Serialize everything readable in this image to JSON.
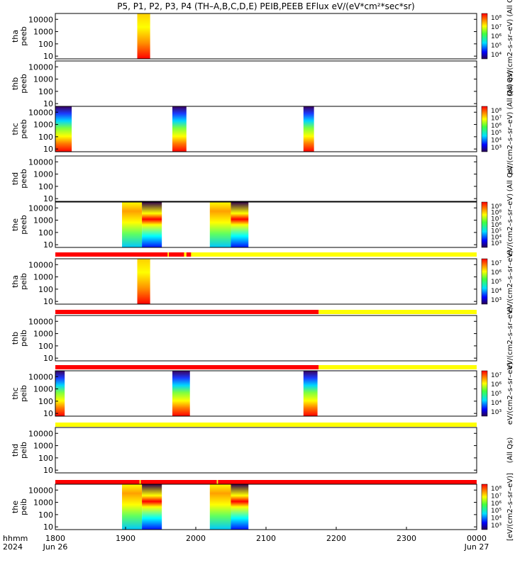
{
  "title": "P5, P1, P2, P3, P4 (TH–A,B,C,D,E) PEIB,PEEB EFlux eV/(eV*cm²*sec*sr)",
  "x_axis": {
    "corner_labels": [
      "hhmm",
      "2024"
    ],
    "tick_labels": [
      "1800",
      "1900",
      "2000",
      "2100",
      "2200",
      "2300",
      "0000"
    ],
    "date_labels": [
      "Jun 26",
      "Jun 27"
    ]
  },
  "colors": {
    "flag_red": "#ff0000",
    "flag_yellow": "#ffff00",
    "frame": "#000000"
  },
  "chart_data": [
    {
      "type": "heatmap",
      "probe": "tha",
      "label": [
        "tha",
        "peeb"
      ],
      "yscale": "log",
      "ylim": [
        6,
        30000
      ],
      "yticks": [
        "10",
        "100",
        "1000",
        "10000"
      ],
      "colorbar": {
        "labels": [
          "10⁴",
          "10⁵",
          "10⁶",
          "10⁷",
          "10⁸"
        ],
        "title": "eV/(cm2–s–sr–eV) (All Qs)"
      },
      "intervals": [
        [
          "1910",
          "1921"
        ]
      ]
    },
    {
      "type": "heatmap",
      "probe": "thb",
      "label": [
        "thb",
        "peeb"
      ],
      "yscale": "log",
      "ylim": [
        6,
        30000
      ],
      "yticks": [
        "10",
        "100",
        "1000",
        "10000"
      ],
      "colorbar": {
        "labels": [],
        "title": "(All Qs)"
      },
      "intervals": []
    },
    {
      "type": "heatmap",
      "probe": "thc",
      "label": [
        "thc",
        "peeb"
      ],
      "yscale": "log",
      "ylim": [
        6,
        30000
      ],
      "yticks": [
        "10",
        "100",
        "1000",
        "10000"
      ],
      "colorbar": {
        "labels": [
          "10³",
          "10⁴",
          "10⁵",
          "10⁶",
          "10⁷",
          "10⁸"
        ],
        "title": "eV/(cm2–s–sr–eV) (All Qs)"
      },
      "intervals": [
        [
          "1800",
          "1814"
        ],
        [
          "1940",
          "1952"
        ],
        [
          "2132",
          "2141"
        ]
      ]
    },
    {
      "type": "heatmap",
      "probe": "thd",
      "label": [
        "thd",
        "peeb"
      ],
      "yscale": "log",
      "ylim": [
        6,
        30000
      ],
      "yticks": [
        "10",
        "100",
        "1000",
        "10000"
      ],
      "colorbar": {
        "labels": [],
        "title": "(All Qs)"
      },
      "intervals": []
    },
    {
      "type": "heatmap",
      "probe": "the",
      "label": [
        "the",
        "peeb"
      ],
      "yscale": "log",
      "ylim": [
        6,
        30000
      ],
      "yticks": [
        "10",
        "100",
        "1000",
        "10000"
      ],
      "colorbar": {
        "labels": [
          "10³",
          "10⁴",
          "10⁵",
          "10⁶",
          "10⁷",
          "10⁸",
          "10⁹"
        ],
        "title": "eV/(cm2–s–sr–eV)"
      },
      "intervals": [
        [
          "1857",
          "1914"
        ],
        [
          "1914",
          "1931"
        ],
        [
          "2012",
          "2030"
        ],
        [
          "2030",
          "2045"
        ]
      ],
      "flag": [
        {
          "from": "1800",
          "to": "1936",
          "color": "red"
        },
        {
          "from": "1936",
          "to": "1937",
          "color": "yellow"
        },
        {
          "from": "1937",
          "to": "1950",
          "color": "red"
        },
        {
          "from": "1950",
          "to": "1952",
          "color": "yellow"
        },
        {
          "from": "1952",
          "to": "1956",
          "color": "red"
        },
        {
          "from": "1956",
          "to": "0000",
          "color": "yellow"
        }
      ]
    },
    {
      "type": "heatmap",
      "probe": "tha",
      "label": [
        "tha",
        "peib"
      ],
      "yscale": "log",
      "ylim": [
        6,
        30000
      ],
      "yticks": [
        "10",
        "100",
        "1000",
        "10000"
      ],
      "colorbar": {
        "labels": [
          "10³",
          "10⁴",
          "10⁵",
          "10⁶",
          "10⁷"
        ],
        "title": "eV/(cm2–s–sr–eV)"
      },
      "intervals": [
        [
          "1910",
          "1921"
        ]
      ],
      "flag": [
        {
          "from": "1800",
          "to": "2145",
          "color": "red"
        },
        {
          "from": "2145",
          "to": "0000",
          "color": "yellow"
        }
      ]
    },
    {
      "type": "heatmap",
      "probe": "thb",
      "label": [
        "thb",
        "peib"
      ],
      "yscale": "log",
      "ylim": [
        6,
        30000
      ],
      "yticks": [
        "10",
        "100",
        "1000",
        "10000"
      ],
      "colorbar": {
        "labels": [],
        "title": "eV/(cm2–s–sr–eV)"
      },
      "intervals": [],
      "flag": [
        {
          "from": "1800",
          "to": "2145",
          "color": "red"
        },
        {
          "from": "2145",
          "to": "0000",
          "color": "yellow"
        }
      ]
    },
    {
      "type": "heatmap",
      "probe": "thc",
      "label": [
        "thc",
        "peib"
      ],
      "yscale": "log",
      "ylim": [
        6,
        30000
      ],
      "yticks": [
        "10",
        "100",
        "1000",
        "10000"
      ],
      "colorbar": {
        "labels": [
          "10³",
          "10⁴",
          "10⁵",
          "10⁶",
          "10⁷"
        ],
        "title": "eV/(cm2–s–sr–eV)"
      },
      "intervals": [
        [
          "1800",
          "1808"
        ],
        [
          "1940",
          "1955"
        ],
        [
          "2132",
          "2144"
        ]
      ],
      "flag": [
        {
          "from": "1800",
          "to": "0000",
          "color": "yellow"
        }
      ]
    },
    {
      "type": "heatmap",
      "probe": "thd",
      "label": [
        "thd",
        "peib"
      ],
      "yscale": "log",
      "ylim": [
        6,
        30000
      ],
      "yticks": [
        "10",
        "100",
        "1000",
        "10000"
      ],
      "colorbar": {
        "labels": [],
        "title": "(All Qs)"
      },
      "intervals": [],
      "flag": [
        {
          "from": "1800",
          "to": "1912",
          "color": "red"
        },
        {
          "from": "1912",
          "to": "1913",
          "color": "yellow"
        },
        {
          "from": "1913",
          "to": "2018",
          "color": "red"
        },
        {
          "from": "2018",
          "to": "2019",
          "color": "yellow"
        },
        {
          "from": "2019",
          "to": "0000",
          "color": "red"
        }
      ]
    },
    {
      "type": "heatmap",
      "probe": "the",
      "label": [
        "the",
        "peib"
      ],
      "yscale": "log",
      "ylim": [
        6,
        30000
      ],
      "yticks": [
        "10",
        "100",
        "1000",
        "10000"
      ],
      "colorbar": {
        "labels": [
          "10³",
          "10⁴",
          "10⁵",
          "10⁶",
          "10⁷",
          "10⁸"
        ],
        "title": "[eV/(cm2–s–sr–eV)]"
      },
      "intervals": [
        [
          "1857",
          "1914"
        ],
        [
          "1914",
          "1931"
        ],
        [
          "2012",
          "2030"
        ],
        [
          "2030",
          "2045"
        ]
      ]
    }
  ]
}
